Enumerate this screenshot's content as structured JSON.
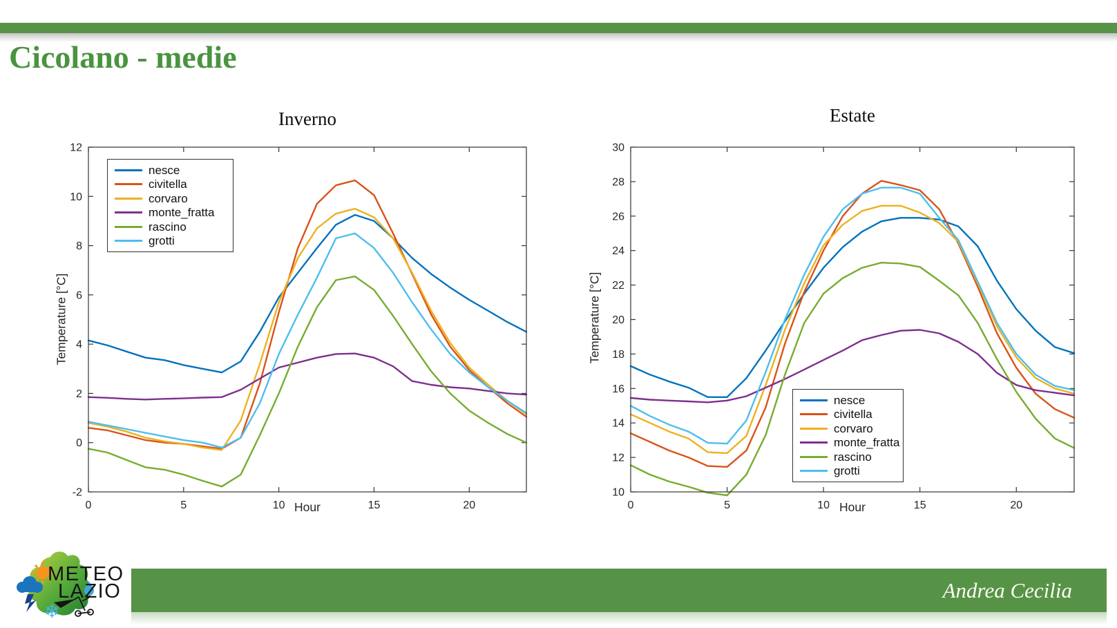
{
  "slide": {
    "title": "Cicolano - medie",
    "accent_color": "#579346",
    "title_color": "#4A9340"
  },
  "logo": {
    "line1": "METEO",
    "line2": "LAZIO"
  },
  "footer": {
    "author": "Andrea Cecilia"
  },
  "chart_data": [
    {
      "type": "line",
      "title": "Inverno",
      "xlabel": "Hour",
      "ylabel": "Temperature [°C]",
      "grid": false,
      "legend_position": "upper-left-inside",
      "x": [
        0,
        1,
        2,
        3,
        4,
        5,
        6,
        7,
        8,
        9,
        10,
        11,
        12,
        13,
        14,
        15,
        16,
        17,
        18,
        19,
        20,
        21,
        22,
        23
      ],
      "xlim": [
        0,
        23
      ],
      "ylim": [
        -2,
        12
      ],
      "xticks": [
        0,
        5,
        10,
        15,
        20
      ],
      "yticks": [
        -2,
        0,
        2,
        4,
        6,
        8,
        10,
        12
      ],
      "series": [
        {
          "name": "nesce",
          "color": "#0072BD",
          "values": [
            4.15,
            3.95,
            3.7,
            3.45,
            3.35,
            3.15,
            3.0,
            2.85,
            3.3,
            4.5,
            5.9,
            6.9,
            7.9,
            8.85,
            9.25,
            9.0,
            8.3,
            7.5,
            6.85,
            6.3,
            5.8,
            5.35,
            4.9,
            4.5
          ]
        },
        {
          "name": "civitella",
          "color": "#D95319",
          "values": [
            0.6,
            0.5,
            0.3,
            0.1,
            0.0,
            -0.05,
            -0.15,
            -0.25,
            0.2,
            2.4,
            5.3,
            7.9,
            9.7,
            10.45,
            10.65,
            10.05,
            8.5,
            6.85,
            5.2,
            3.9,
            2.95,
            2.25,
            1.6,
            1.05
          ]
        },
        {
          "name": "corvaro",
          "color": "#EDB120",
          "values": [
            0.8,
            0.65,
            0.45,
            0.2,
            0.05,
            -0.05,
            -0.2,
            -0.3,
            0.9,
            3.2,
            5.7,
            7.5,
            8.7,
            9.3,
            9.5,
            9.15,
            8.3,
            6.9,
            5.35,
            4.05,
            3.05,
            2.35,
            1.7,
            1.15
          ]
        },
        {
          "name": "monte_fratta",
          "color": "#7E2F8E",
          "values": [
            1.85,
            1.82,
            1.78,
            1.75,
            1.78,
            1.8,
            1.83,
            1.85,
            2.15,
            2.6,
            3.05,
            3.25,
            3.45,
            3.6,
            3.62,
            3.45,
            3.1,
            2.5,
            2.35,
            2.25,
            2.2,
            2.1,
            2.0,
            1.95
          ]
        },
        {
          "name": "rascino",
          "color": "#77AC30",
          "values": [
            -0.25,
            -0.4,
            -0.7,
            -1.0,
            -1.1,
            -1.3,
            -1.55,
            -1.78,
            -1.3,
            0.3,
            2.0,
            3.9,
            5.5,
            6.6,
            6.75,
            6.2,
            5.15,
            4.0,
            2.9,
            2.0,
            1.3,
            0.8,
            0.35,
            0.0
          ]
        },
        {
          "name": "grotti",
          "color": "#4DBEEE",
          "values": [
            0.85,
            0.7,
            0.55,
            0.4,
            0.25,
            0.1,
            0.0,
            -0.2,
            0.2,
            1.6,
            3.6,
            5.2,
            6.7,
            8.3,
            8.5,
            7.9,
            6.9,
            5.7,
            4.6,
            3.6,
            2.85,
            2.25,
            1.7,
            1.2
          ]
        }
      ]
    },
    {
      "type": "line",
      "title": "Estate",
      "xlabel": "Hour",
      "ylabel": "Temperature [°C]",
      "grid": false,
      "legend_position": "lower-center-right-inside",
      "x": [
        0,
        1,
        2,
        3,
        4,
        5,
        6,
        7,
        8,
        9,
        10,
        11,
        12,
        13,
        14,
        15,
        16,
        17,
        18,
        19,
        20,
        21,
        22,
        23
      ],
      "xlim": [
        0,
        23
      ],
      "ylim": [
        10,
        30
      ],
      "xticks": [
        0,
        5,
        10,
        15,
        20
      ],
      "yticks": [
        10,
        12,
        14,
        16,
        18,
        20,
        22,
        24,
        26,
        28,
        30
      ],
      "series": [
        {
          "name": "nesce",
          "color": "#0072BD",
          "values": [
            17.3,
            16.8,
            16.4,
            16.05,
            15.5,
            15.5,
            16.6,
            18.2,
            19.9,
            21.5,
            23.0,
            24.2,
            25.1,
            25.7,
            25.9,
            25.9,
            25.8,
            25.4,
            24.25,
            22.25,
            20.6,
            19.35,
            18.4,
            18.05
          ]
        },
        {
          "name": "civitella",
          "color": "#D95319",
          "values": [
            13.4,
            12.9,
            12.4,
            12.0,
            11.5,
            11.45,
            12.4,
            14.9,
            18.6,
            21.6,
            24.0,
            26.0,
            27.3,
            28.05,
            27.8,
            27.5,
            26.4,
            24.4,
            21.9,
            19.2,
            17.2,
            15.7,
            14.8,
            14.3
          ]
        },
        {
          "name": "corvaro",
          "color": "#EDB120",
          "values": [
            14.5,
            14.0,
            13.5,
            13.1,
            12.3,
            12.25,
            13.25,
            16.2,
            19.4,
            22.1,
            24.3,
            25.5,
            26.3,
            26.6,
            26.6,
            26.2,
            25.6,
            24.5,
            22.1,
            19.6,
            17.8,
            16.6,
            16.0,
            15.7
          ]
        },
        {
          "name": "monte_fratta",
          "color": "#7E2F8E",
          "values": [
            15.45,
            15.35,
            15.3,
            15.25,
            15.2,
            15.3,
            15.55,
            16.05,
            16.55,
            17.1,
            17.65,
            18.2,
            18.8,
            19.1,
            19.35,
            19.4,
            19.2,
            18.7,
            18.0,
            16.9,
            16.2,
            15.9,
            15.75,
            15.6
          ]
        },
        {
          "name": "rascino",
          "color": "#77AC30",
          "values": [
            11.55,
            11.0,
            10.6,
            10.3,
            9.95,
            9.8,
            11.0,
            13.3,
            16.8,
            19.8,
            21.5,
            22.4,
            23.0,
            23.3,
            23.25,
            23.05,
            22.25,
            21.4,
            19.8,
            17.7,
            15.8,
            14.25,
            13.1,
            12.55
          ]
        },
        {
          "name": "grotti",
          "color": "#4DBEEE",
          "values": [
            15.0,
            14.4,
            13.9,
            13.5,
            12.85,
            12.8,
            14.15,
            16.95,
            20.0,
            22.6,
            24.8,
            26.4,
            27.3,
            27.65,
            27.65,
            27.3,
            25.9,
            24.6,
            22.2,
            19.8,
            18.0,
            16.8,
            16.15,
            15.9
          ]
        }
      ]
    }
  ]
}
